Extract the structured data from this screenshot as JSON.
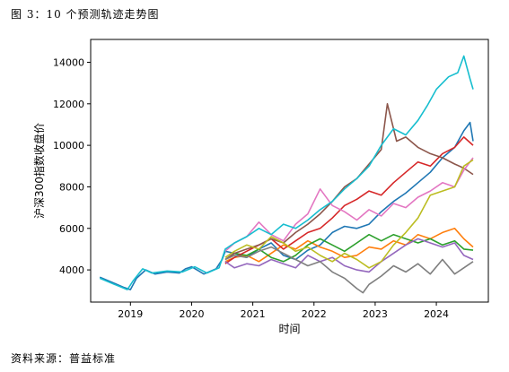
{
  "figure_title": "图 3：10 个预测轨迹走势图",
  "source_note": "资料来源：普益标准",
  "chart_data": {
    "type": "line",
    "xlabel": "时间",
    "ylabel": "沪深300指数收盘价",
    "xlim": [
      2018.35,
      2024.85
    ],
    "ylim": [
      2450,
      15100
    ],
    "x_ticks": [
      2019,
      2020,
      2021,
      2022,
      2023,
      2024
    ],
    "x_tick_labels": [
      "2019",
      "2020",
      "2021",
      "2022",
      "2023",
      "2024"
    ],
    "y_ticks": [
      4000,
      6000,
      8000,
      10000,
      12000,
      14000
    ],
    "y_tick_labels": [
      "4000",
      "6000",
      "8000",
      "10000",
      "12000",
      "14000"
    ],
    "grid": false,
    "series": [
      {
        "color": "#1f77b4",
        "points": [
          [
            2018.5,
            3650
          ],
          [
            2018.7,
            3400
          ],
          [
            2018.9,
            3150
          ],
          [
            2019.0,
            3050
          ],
          [
            2019.1,
            3600
          ],
          [
            2019.25,
            4000
          ],
          [
            2019.4,
            3800
          ],
          [
            2019.6,
            3900
          ],
          [
            2019.8,
            3850
          ],
          [
            2019.9,
            4050
          ],
          [
            2020.0,
            4150
          ],
          [
            2020.2,
            3800
          ],
          [
            2020.4,
            4050
          ],
          [
            2020.5,
            4500
          ],
          [
            2020.55,
            4900
          ],
          [
            2020.7,
            4800
          ],
          [
            2020.9,
            4600
          ],
          [
            2021.1,
            5000
          ],
          [
            2021.3,
            5300
          ],
          [
            2021.5,
            4700
          ],
          [
            2021.7,
            4500
          ],
          [
            2021.9,
            4950
          ],
          [
            2022.1,
            5200
          ],
          [
            2022.3,
            5800
          ],
          [
            2022.5,
            6100
          ],
          [
            2022.7,
            6000
          ],
          [
            2022.9,
            6200
          ],
          [
            2023.1,
            6800
          ],
          [
            2023.3,
            7300
          ],
          [
            2023.5,
            7700
          ],
          [
            2023.7,
            8200
          ],
          [
            2023.9,
            8700
          ],
          [
            2024.1,
            9400
          ],
          [
            2024.3,
            9900
          ],
          [
            2024.45,
            10700
          ],
          [
            2024.55,
            11100
          ],
          [
            2024.6,
            10200
          ]
        ]
      },
      {
        "color": "#ff7f0e",
        "points": [
          [
            2020.55,
            4400
          ],
          [
            2020.7,
            4600
          ],
          [
            2020.9,
            4700
          ],
          [
            2021.1,
            4400
          ],
          [
            2021.3,
            4800
          ],
          [
            2021.5,
            5200
          ],
          [
            2021.7,
            5000
          ],
          [
            2021.9,
            5400
          ],
          [
            2022.1,
            5100
          ],
          [
            2022.3,
            4900
          ],
          [
            2022.5,
            4600
          ],
          [
            2022.7,
            4700
          ],
          [
            2022.9,
            5100
          ],
          [
            2023.1,
            5000
          ],
          [
            2023.3,
            5400
          ],
          [
            2023.5,
            5200
          ],
          [
            2023.7,
            5700
          ],
          [
            2023.9,
            5500
          ],
          [
            2024.1,
            5800
          ],
          [
            2024.3,
            6000
          ],
          [
            2024.45,
            5500
          ],
          [
            2024.6,
            5100
          ]
        ]
      },
      {
        "color": "#2ca02c",
        "points": [
          [
            2020.55,
            4500
          ],
          [
            2020.7,
            4800
          ],
          [
            2020.9,
            4700
          ],
          [
            2021.1,
            5000
          ],
          [
            2021.3,
            4600
          ],
          [
            2021.5,
            4400
          ],
          [
            2021.7,
            4700
          ],
          [
            2021.9,
            5200
          ],
          [
            2022.1,
            5500
          ],
          [
            2022.3,
            5200
          ],
          [
            2022.5,
            4900
          ],
          [
            2022.7,
            5300
          ],
          [
            2022.9,
            5700
          ],
          [
            2023.1,
            5400
          ],
          [
            2023.3,
            5700
          ],
          [
            2023.5,
            5500
          ],
          [
            2023.7,
            5300
          ],
          [
            2023.9,
            5500
          ],
          [
            2024.1,
            5200
          ],
          [
            2024.3,
            5400
          ],
          [
            2024.45,
            5000
          ],
          [
            2024.6,
            4950
          ]
        ]
      },
      {
        "color": "#d62728",
        "points": [
          [
            2020.55,
            4300
          ],
          [
            2020.7,
            4600
          ],
          [
            2020.9,
            4900
          ],
          [
            2021.1,
            5200
          ],
          [
            2021.3,
            5500
          ],
          [
            2021.5,
            5000
          ],
          [
            2021.7,
            5400
          ],
          [
            2021.9,
            5800
          ],
          [
            2022.1,
            6000
          ],
          [
            2022.3,
            6500
          ],
          [
            2022.5,
            7100
          ],
          [
            2022.7,
            7400
          ],
          [
            2022.9,
            7800
          ],
          [
            2023.1,
            7600
          ],
          [
            2023.3,
            8200
          ],
          [
            2023.5,
            8700
          ],
          [
            2023.7,
            9200
          ],
          [
            2023.9,
            9000
          ],
          [
            2024.1,
            9600
          ],
          [
            2024.3,
            9900
          ],
          [
            2024.45,
            10400
          ],
          [
            2024.6,
            10000
          ]
        ]
      },
      {
        "color": "#9467bd",
        "points": [
          [
            2020.55,
            4400
          ],
          [
            2020.7,
            4100
          ],
          [
            2020.9,
            4300
          ],
          [
            2021.1,
            4200
          ],
          [
            2021.3,
            4500
          ],
          [
            2021.5,
            4300
          ],
          [
            2021.7,
            4100
          ],
          [
            2021.9,
            4700
          ],
          [
            2022.1,
            4400
          ],
          [
            2022.3,
            4600
          ],
          [
            2022.5,
            4200
          ],
          [
            2022.7,
            4000
          ],
          [
            2022.9,
            3900
          ],
          [
            2023.1,
            4400
          ],
          [
            2023.3,
            4800
          ],
          [
            2023.5,
            5200
          ],
          [
            2023.7,
            5500
          ],
          [
            2023.9,
            5300
          ],
          [
            2024.1,
            5100
          ],
          [
            2024.3,
            5300
          ],
          [
            2024.45,
            4700
          ],
          [
            2024.6,
            4500
          ]
        ]
      },
      {
        "color": "#8c564b",
        "points": [
          [
            2020.55,
            4500
          ],
          [
            2020.7,
            4800
          ],
          [
            2020.9,
            5000
          ],
          [
            2021.1,
            5200
          ],
          [
            2021.3,
            5500
          ],
          [
            2021.5,
            5300
          ],
          [
            2021.7,
            5800
          ],
          [
            2021.9,
            6200
          ],
          [
            2022.1,
            6700
          ],
          [
            2022.3,
            7300
          ],
          [
            2022.5,
            8000
          ],
          [
            2022.7,
            8400
          ],
          [
            2022.9,
            9100
          ],
          [
            2023.1,
            9800
          ],
          [
            2023.2,
            12000
          ],
          [
            2023.35,
            10200
          ],
          [
            2023.5,
            10400
          ],
          [
            2023.7,
            9900
          ],
          [
            2023.9,
            9600
          ],
          [
            2024.1,
            9400
          ],
          [
            2024.3,
            9100
          ],
          [
            2024.45,
            8900
          ],
          [
            2024.6,
            8600
          ]
        ]
      },
      {
        "color": "#e377c2",
        "points": [
          [
            2020.55,
            4900
          ],
          [
            2020.7,
            5300
          ],
          [
            2020.9,
            5600
          ],
          [
            2021.1,
            6300
          ],
          [
            2021.3,
            5700
          ],
          [
            2021.5,
            5400
          ],
          [
            2021.7,
            6200
          ],
          [
            2021.9,
            6700
          ],
          [
            2022.1,
            7900
          ],
          [
            2022.3,
            7100
          ],
          [
            2022.5,
            6800
          ],
          [
            2022.7,
            6400
          ],
          [
            2022.9,
            6900
          ],
          [
            2023.1,
            6600
          ],
          [
            2023.3,
            7200
          ],
          [
            2023.5,
            7000
          ],
          [
            2023.7,
            7500
          ],
          [
            2023.9,
            7800
          ],
          [
            2024.1,
            8200
          ],
          [
            2024.3,
            8000
          ],
          [
            2024.45,
            8800
          ],
          [
            2024.6,
            9400
          ]
        ]
      },
      {
        "color": "#7f7f7f",
        "points": [
          [
            2020.55,
            4500
          ],
          [
            2020.7,
            4700
          ],
          [
            2020.9,
            4600
          ],
          [
            2021.1,
            4900
          ],
          [
            2021.3,
            5100
          ],
          [
            2021.5,
            4800
          ],
          [
            2021.7,
            4500
          ],
          [
            2021.9,
            4200
          ],
          [
            2022.1,
            4400
          ],
          [
            2022.3,
            3900
          ],
          [
            2022.5,
            3600
          ],
          [
            2022.7,
            3100
          ],
          [
            2022.8,
            2900
          ],
          [
            2022.9,
            3300
          ],
          [
            2023.1,
            3700
          ],
          [
            2023.3,
            4200
          ],
          [
            2023.5,
            3900
          ],
          [
            2023.7,
            4300
          ],
          [
            2023.9,
            3800
          ],
          [
            2024.1,
            4500
          ],
          [
            2024.3,
            3800
          ],
          [
            2024.45,
            4100
          ],
          [
            2024.6,
            4400
          ]
        ]
      },
      {
        "color": "#bcbd22",
        "points": [
          [
            2020.55,
            4600
          ],
          [
            2020.7,
            4900
          ],
          [
            2020.9,
            5200
          ],
          [
            2021.1,
            5000
          ],
          [
            2021.3,
            5600
          ],
          [
            2021.5,
            5300
          ],
          [
            2021.7,
            4900
          ],
          [
            2021.9,
            5100
          ],
          [
            2022.1,
            4700
          ],
          [
            2022.3,
            4400
          ],
          [
            2022.5,
            4800
          ],
          [
            2022.7,
            4500
          ],
          [
            2022.9,
            4100
          ],
          [
            2023.1,
            4400
          ],
          [
            2023.3,
            5200
          ],
          [
            2023.5,
            5800
          ],
          [
            2023.7,
            6500
          ],
          [
            2023.9,
            7600
          ],
          [
            2024.1,
            7800
          ],
          [
            2024.3,
            8000
          ],
          [
            2024.45,
            9000
          ],
          [
            2024.6,
            9300
          ]
        ]
      },
      {
        "color": "#17becf",
        "points": [
          [
            2018.5,
            3600
          ],
          [
            2018.7,
            3350
          ],
          [
            2018.95,
            3050
          ],
          [
            2019.05,
            3500
          ],
          [
            2019.2,
            4050
          ],
          [
            2019.35,
            3850
          ],
          [
            2019.6,
            3950
          ],
          [
            2019.85,
            3900
          ],
          [
            2020.05,
            4150
          ],
          [
            2020.25,
            3850
          ],
          [
            2020.45,
            4100
          ],
          [
            2020.55,
            5000
          ],
          [
            2020.7,
            5300
          ],
          [
            2020.9,
            5600
          ],
          [
            2021.1,
            6000
          ],
          [
            2021.3,
            5700
          ],
          [
            2021.5,
            6200
          ],
          [
            2021.7,
            6000
          ],
          [
            2021.9,
            6400
          ],
          [
            2022.1,
            6900
          ],
          [
            2022.3,
            7300
          ],
          [
            2022.5,
            7900
          ],
          [
            2022.7,
            8400
          ],
          [
            2022.9,
            9000
          ],
          [
            2023.1,
            10000
          ],
          [
            2023.3,
            10800
          ],
          [
            2023.5,
            10500
          ],
          [
            2023.7,
            11200
          ],
          [
            2023.85,
            11900
          ],
          [
            2024.0,
            12700
          ],
          [
            2024.2,
            13300
          ],
          [
            2024.35,
            13500
          ],
          [
            2024.45,
            14300
          ],
          [
            2024.55,
            13200
          ],
          [
            2024.6,
            12700
          ]
        ]
      }
    ]
  }
}
